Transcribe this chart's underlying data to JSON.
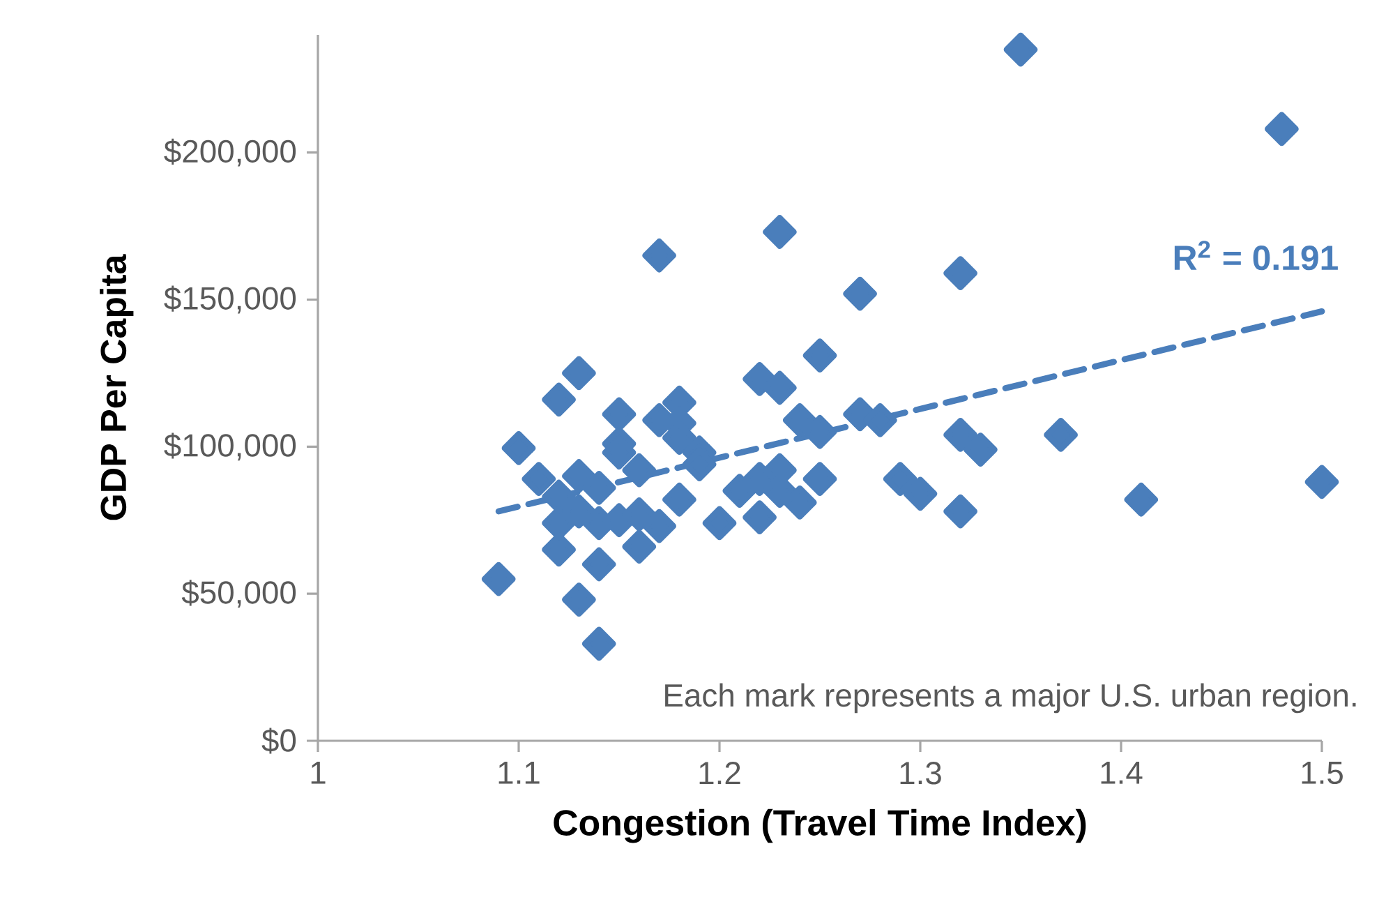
{
  "chart_data": {
    "type": "scatter",
    "xlabel": "Congestion (Travel Time Index)",
    "ylabel": "GDP Per Capita",
    "xlim": [
      1,
      1.5
    ],
    "xticks": [
      1,
      1.1,
      1.2,
      1.3,
      1.4,
      1.5
    ],
    "ylim": [
      0,
      240000
    ],
    "yticks": [
      {
        "value": 0,
        "label": "$0"
      },
      {
        "value": 50000,
        "label": "$50,000"
      },
      {
        "value": 100000,
        "label": "$100,000"
      },
      {
        "value": 150000,
        "label": "$150,000"
      },
      {
        "value": 200000,
        "label": "$200,000"
      }
    ],
    "grid": false,
    "annotations": [
      "R$^{2}$ = 0.191",
      "Each mark represents a major U.S. urban region."
    ],
    "series": [
      {
        "marker": "diamond",
        "color": "#4a7ebb",
        "x": [
          1.09,
          1.1,
          1.11,
          1.12,
          1.12,
          1.12,
          1.12,
          1.13,
          1.13,
          1.13,
          1.13,
          1.14,
          1.14,
          1.14,
          1.14,
          1.15,
          1.15,
          1.15,
          1.15,
          1.16,
          1.16,
          1.16,
          1.17,
          1.17,
          1.17,
          1.18,
          1.18,
          1.18,
          1.18,
          1.19,
          1.19,
          1.2,
          1.21,
          1.22,
          1.22,
          1.22,
          1.23,
          1.23,
          1.23,
          1.23,
          1.24,
          1.24,
          1.25,
          1.25,
          1.25,
          1.27,
          1.27,
          1.28,
          1.29,
          1.3,
          1.32,
          1.32,
          1.32,
          1.33,
          1.35,
          1.37,
          1.41,
          1.48,
          1.5
        ],
        "values": [
          55000,
          99500,
          89000,
          116000,
          83000,
          65000,
          74000,
          125000,
          90000,
          78000,
          48000,
          86000,
          74000,
          60000,
          33000,
          111000,
          101000,
          98000,
          75000,
          92000,
          77000,
          66000,
          165000,
          109000,
          73000,
          115000,
          108000,
          103000,
          82000,
          98000,
          94000,
          74000,
          85000,
          123000,
          89000,
          76000,
          173000,
          120000,
          92000,
          85000,
          109000,
          81000,
          131000,
          105000,
          89000,
          152000,
          111000,
          109000,
          89000,
          84000,
          159000,
          104000,
          78000,
          99000,
          235000,
          104000,
          82000,
          208000,
          88000
        ]
      },
      {
        "type": "line",
        "marker": "none",
        "line_style": "dashed",
        "color": "#4a7ebb",
        "x": [
          1.09,
          1.5
        ],
        "values": [
          78000,
          146000
        ]
      }
    ]
  }
}
